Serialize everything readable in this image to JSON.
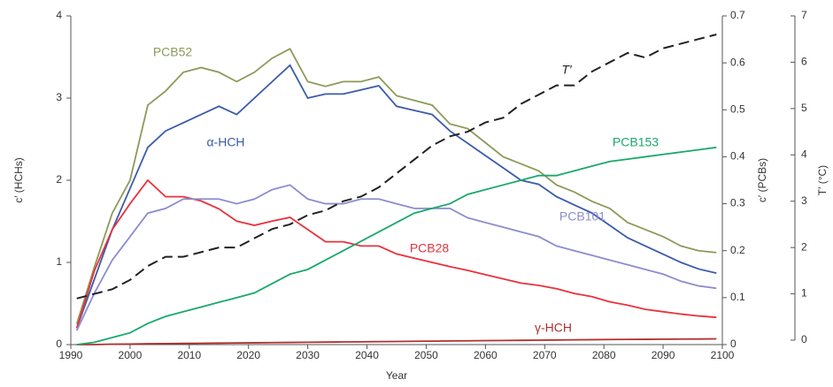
{
  "chart_data": {
    "type": "line",
    "x_label": "Year",
    "y_label": "c′ (HCHs)",
    "y2_label": "c′ (PCBs)",
    "y3_label": "T′ (°C)",
    "x": [
      1991,
      1994,
      1997,
      2000,
      2003,
      2006,
      2009,
      2012,
      2015,
      2018,
      2021,
      2024,
      2027,
      2030,
      2033,
      2036,
      2039,
      2042,
      2045,
      2048,
      2051,
      2054,
      2057,
      2060,
      2063,
      2066,
      2069,
      2072,
      2075,
      2078,
      2081,
      2084,
      2087,
      2090,
      2093,
      2096,
      2099
    ],
    "xlim": [
      1990,
      2100
    ],
    "xticks": [
      1990,
      2000,
      2010,
      2020,
      2030,
      2040,
      2050,
      2060,
      2070,
      2080,
      2090,
      2100
    ],
    "ylim": [
      0,
      4
    ],
    "yticks": [
      0,
      1,
      2,
      3,
      4
    ],
    "y2lim": [
      0,
      0.7
    ],
    "y2ticks": [
      0,
      0.1,
      0.2,
      0.3,
      0.4,
      0.5,
      0.6,
      0.7
    ],
    "y3lim": [
      0,
      7
    ],
    "y3ticks": [
      0,
      1,
      2,
      3,
      4,
      5,
      6,
      7
    ],
    "series": [
      {
        "name": "α-HCH",
        "color": "#3a5bab",
        "values": [
          0.2,
          0.8,
          1.4,
          1.9,
          2.4,
          2.6,
          2.7,
          2.8,
          2.9,
          2.8,
          3.0,
          3.2,
          3.4,
          3.0,
          3.05,
          3.05,
          3.1,
          3.15,
          2.9,
          2.85,
          2.8,
          2.6,
          2.45,
          2.3,
          2.15,
          2.0,
          1.95,
          1.8,
          1.7,
          1.6,
          1.45,
          1.3,
          1.2,
          1.1,
          1.0,
          0.92,
          0.87
        ]
      },
      {
        "name": "γ-HCH",
        "color": "#b03030",
        "values": [
          0.0,
          0.0,
          0.005,
          0.007,
          0.01,
          0.012,
          0.014,
          0.016,
          0.018,
          0.02,
          0.022,
          0.024,
          0.026,
          0.028,
          0.03,
          0.032,
          0.034,
          0.036,
          0.038,
          0.04,
          0.042,
          0.044,
          0.046,
          0.048,
          0.05,
          0.052,
          0.054,
          0.056,
          0.058,
          0.06,
          0.062,
          0.063,
          0.064,
          0.066,
          0.067,
          0.068,
          0.07
        ]
      },
      {
        "name": "PCB52",
        "color": "#8c9a5a",
        "axis": "y2",
        "values": [
          0.044,
          0.166,
          0.28,
          0.35,
          0.51,
          0.54,
          0.58,
          0.59,
          0.58,
          0.56,
          0.58,
          0.61,
          0.63,
          0.56,
          0.55,
          0.56,
          0.56,
          0.57,
          0.53,
          0.52,
          0.51,
          0.47,
          0.46,
          0.43,
          0.4,
          0.385,
          0.37,
          0.34,
          0.325,
          0.305,
          0.29,
          0.26,
          0.245,
          0.23,
          0.21,
          0.2,
          0.196
        ]
      },
      {
        "name": "PCB28",
        "color": "#e8323c",
        "axis": "y2",
        "values": [
          0.035,
          0.158,
          0.245,
          0.3,
          0.35,
          0.315,
          0.315,
          0.306,
          0.289,
          0.263,
          0.254,
          0.263,
          0.271,
          0.245,
          0.219,
          0.219,
          0.21,
          0.21,
          0.193,
          0.184,
          0.175,
          0.166,
          0.158,
          0.149,
          0.14,
          0.131,
          0.126,
          0.119,
          0.109,
          0.102,
          0.091,
          0.084,
          0.075,
          0.07,
          0.065,
          0.061,
          0.058
        ]
      },
      {
        "name": "PCB101",
        "color": "#8c8cd0",
        "axis": "y2",
        "values": [
          0.03,
          0.11,
          0.18,
          0.23,
          0.28,
          0.29,
          0.31,
          0.31,
          0.31,
          0.3,
          0.31,
          0.33,
          0.34,
          0.31,
          0.3,
          0.3,
          0.31,
          0.31,
          0.3,
          0.29,
          0.29,
          0.29,
          0.27,
          0.26,
          0.25,
          0.24,
          0.23,
          0.21,
          0.2,
          0.19,
          0.18,
          0.17,
          0.16,
          0.15,
          0.135,
          0.125,
          0.12
        ]
      },
      {
        "name": "PCB153",
        "color": "#1aa86c",
        "axis": "y2",
        "values": [
          0,
          0.005,
          0.015,
          0.025,
          0.045,
          0.06,
          0.07,
          0.08,
          0.09,
          0.1,
          0.11,
          0.13,
          0.15,
          0.16,
          0.18,
          0.2,
          0.22,
          0.24,
          0.26,
          0.28,
          0.29,
          0.3,
          0.32,
          0.33,
          0.34,
          0.35,
          0.36,
          0.36,
          0.37,
          0.38,
          0.39,
          0.395,
          0.4,
          0.405,
          0.41,
          0.415,
          0.42
        ]
      },
      {
        "name": "T′",
        "color": "#222222",
        "axis": "y3",
        "dashed": true,
        "values": [
          0.9,
          1.0,
          1.1,
          1.3,
          1.6,
          1.8,
          1.8,
          1.9,
          2.0,
          2.0,
          2.2,
          2.4,
          2.5,
          2.7,
          2.8,
          3.0,
          3.1,
          3.3,
          3.6,
          3.9,
          4.2,
          4.4,
          4.5,
          4.7,
          4.8,
          5.1,
          5.3,
          5.5,
          5.5,
          5.8,
          6.0,
          6.2,
          6.1,
          6.3,
          6.4,
          6.5,
          6.6
        ]
      }
    ]
  }
}
